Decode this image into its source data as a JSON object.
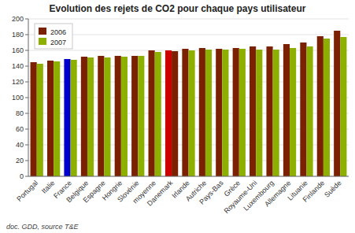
{
  "chart_data": {
    "type": "bar",
    "title": "Evolution des rejets de CO2 pour chaque pays utilisateur",
    "subtitle": "doc. GDD, source T&E",
    "categories": [
      "Portugal",
      "Italie",
      "France",
      "Belgique",
      "Espagne",
      "Hongrie",
      "Slovénie",
      "moyenne",
      "Danemark",
      "Irlande",
      "Autriche",
      "Pays-Bas",
      "Grèce",
      "Royaume-Uni",
      "Luxembourg",
      "Allemagne",
      "Lituanie",
      "Finlande",
      "Suède"
    ],
    "series": [
      {
        "name": "2006",
        "color": "#7B2000",
        "colors": [
          "#7B2000",
          "#7B2000",
          "#0000CC",
          "#7B2000",
          "#7B2000",
          "#7B2000",
          "#7B2000",
          "#7B2000",
          "#CC0000",
          "#7B2000",
          "#7B2000",
          "#7B2000",
          "#7B2000",
          "#7B2000",
          "#7B2000",
          "#7B2000",
          "#7B2000",
          "#7B2000",
          "#7B2000"
        ],
        "values": [
          145,
          147,
          149,
          152,
          153,
          153,
          153,
          160,
          160,
          162,
          163,
          162,
          163,
          165,
          165,
          168,
          170,
          178,
          185
        ]
      },
      {
        "name": "2007",
        "color": "#8DB000",
        "colors": [
          "#8DB000",
          "#8DB000",
          "#8DB000",
          "#8DB000",
          "#8DB000",
          "#8DB000",
          "#8DB000",
          "#8DB000",
          "#7B2000",
          "#8DB000",
          "#8DB000",
          "#8DB000",
          "#8DB000",
          "#8DB000",
          "#8DB000",
          "#8DB000",
          "#8DB000",
          "#8DB000",
          "#8DB000"
        ],
        "values": [
          143,
          146,
          148,
          151,
          151,
          152,
          153,
          158,
          159,
          160,
          161,
          161,
          162,
          161,
          161,
          163,
          165,
          175,
          177
        ]
      }
    ],
    "ylim": [
      0,
      200
    ],
    "yticks": [
      0,
      20,
      40,
      60,
      80,
      100,
      120,
      140,
      160,
      180,
      200
    ],
    "grid": true,
    "legend": "upper left"
  }
}
